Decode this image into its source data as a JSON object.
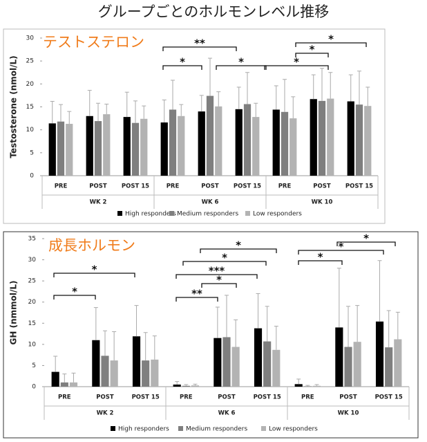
{
  "title": "グループごとのホルモンレベル推移",
  "chart_data": [
    {
      "type": "bar",
      "title": "テストステロン",
      "y_label": "Testosterone (nmol/L)",
      "categories": [
        "PRE",
        "POST",
        "POST 15",
        "PRE",
        "POST",
        "POST 15",
        "PRE",
        "POST",
        "POST 15"
      ],
      "groups": [
        "WK 2",
        "WK 6",
        "WK 10"
      ],
      "ylim": [
        0,
        30
      ],
      "yticks": [
        0,
        5,
        10,
        15,
        20,
        25,
        30
      ],
      "series": [
        {
          "name": "High responders",
          "color": "#000000",
          "values": [
            11.4,
            13.0,
            12.8,
            11.6,
            14.0,
            14.5,
            14.4,
            16.7,
            16.2
          ],
          "errors": [
            4.8,
            5.6,
            5.4,
            4.9,
            3.5,
            4.8,
            5.2,
            5.3,
            5.8
          ]
        },
        {
          "name": "Medium responders",
          "color": "#7f7f7f",
          "values": [
            11.8,
            11.9,
            11.5,
            14.4,
            17.4,
            15.6,
            13.9,
            16.3,
            15.5
          ],
          "errors": [
            3.7,
            3.9,
            4.8,
            6.4,
            8.2,
            6.9,
            7.1,
            7.1,
            7.3
          ]
        },
        {
          "name": "Low responders",
          "color": "#b3b3b3",
          "values": [
            11.3,
            13.4,
            12.4,
            13.0,
            15.1,
            12.8,
            12.5,
            16.8,
            15.2
          ],
          "errors": [
            2.7,
            2.2,
            2.8,
            2.5,
            3.2,
            3.0,
            4.7,
            5.7,
            4.1
          ]
        }
      ],
      "annotations": [
        "**",
        "*",
        "*",
        "*",
        "*",
        "*"
      ]
    },
    {
      "type": "bar",
      "title": "成長ホルモン",
      "y_label": "GH (nmmol/L)",
      "categories": [
        "PRE",
        "POST",
        "POST 15",
        "PRE",
        "POST",
        "POST 15",
        "PRE",
        "POST",
        "POST 15"
      ],
      "groups": [
        "WK 2",
        "WK 6",
        "WK 10"
      ],
      "ylim": [
        0,
        35
      ],
      "yticks": [
        0,
        5,
        10,
        15,
        20,
        25,
        30,
        35
      ],
      "series": [
        {
          "name": "High responders",
          "color": "#000000",
          "values": [
            3.5,
            11.0,
            11.9,
            0.5,
            11.5,
            13.8,
            0.6,
            14.0,
            15.4
          ],
          "errors": [
            3.7,
            7.7,
            7.3,
            0.7,
            7.3,
            8.2,
            1.2,
            14.0,
            14.4
          ]
        },
        {
          "name": "Medium responders",
          "color": "#7f7f7f",
          "values": [
            1.0,
            7.3,
            6.2,
            0.2,
            11.7,
            10.7,
            0.1,
            9.4,
            9.3
          ],
          "errors": [
            2.0,
            5.9,
            6.6,
            0.3,
            9.9,
            8.3,
            0.2,
            9.6,
            8.7
          ]
        },
        {
          "name": "Low responders",
          "color": "#b3b3b3",
          "values": [
            1.0,
            6.2,
            6.4,
            0.3,
            9.4,
            8.7,
            0.2,
            10.6,
            11.2
          ],
          "errors": [
            2.2,
            6.8,
            5.6,
            0.3,
            6.4,
            5.6,
            0.3,
            8.6,
            6.4
          ]
        }
      ],
      "annotations": [
        "*",
        "*",
        "**",
        "*",
        "***",
        "*",
        "*",
        "*",
        "*",
        "*"
      ]
    }
  ]
}
